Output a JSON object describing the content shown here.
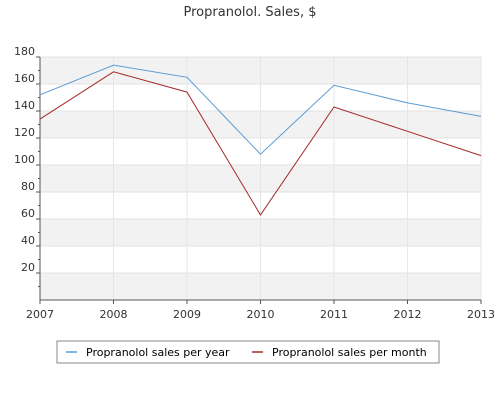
{
  "chart_data": {
    "type": "line",
    "title": "Propranolol. Sales, $",
    "x": [
      "2007",
      "2008",
      "2009",
      "2010",
      "2011",
      "2012",
      "2013"
    ],
    "ylim": [
      0,
      180
    ],
    "yticks": [
      20,
      40,
      60,
      80,
      100,
      120,
      140,
      160,
      180
    ],
    "grid": true,
    "banded_background": true,
    "legend_placement": "bottom",
    "series": [
      {
        "name": "Propranolol sales per year",
        "color": "#5b9bd5",
        "values": [
          152,
          174,
          165,
          108,
          159,
          146,
          136
        ]
      },
      {
        "name": "Propranolol sales per month",
        "color": "#a52a2a",
        "values": [
          134,
          169,
          154,
          63,
          143,
          125,
          107
        ]
      }
    ]
  }
}
